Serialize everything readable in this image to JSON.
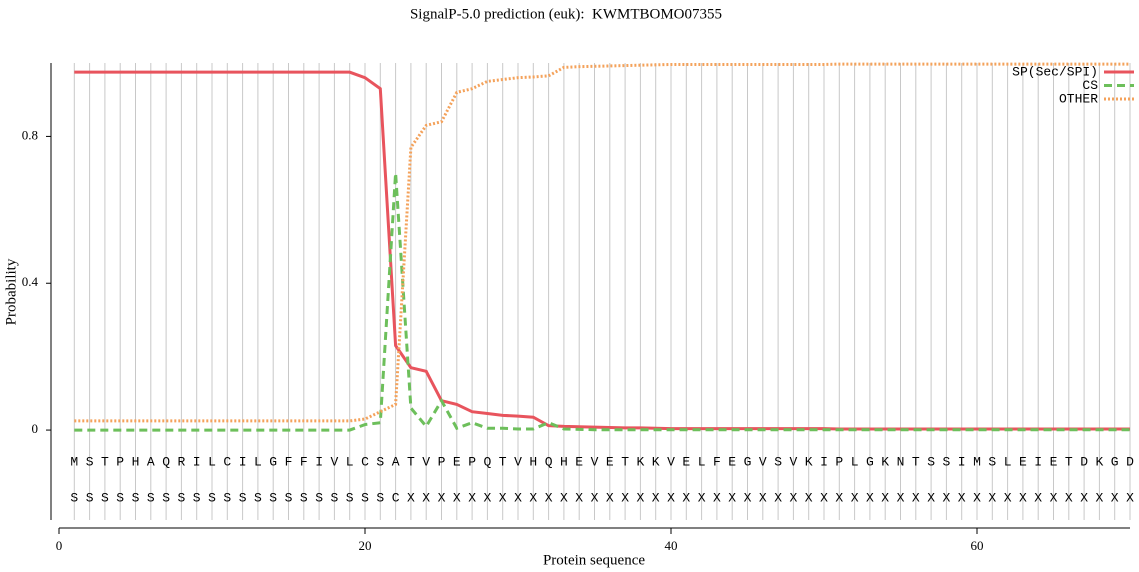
{
  "chart_data": {
    "type": "line",
    "title": "SignalP-5.0 prediction (euk):  KWMTBOMO07355",
    "x_label": "Protein sequence",
    "y_label": "Probability",
    "x": [
      1,
      2,
      3,
      4,
      5,
      6,
      7,
      8,
      9,
      10,
      11,
      12,
      13,
      14,
      15,
      16,
      17,
      18,
      19,
      20,
      21,
      22,
      23,
      24,
      25,
      26,
      27,
      28,
      29,
      30,
      31,
      32,
      33,
      34,
      35,
      36,
      37,
      38,
      39,
      40,
      41,
      42,
      43,
      44,
      45,
      46,
      47,
      48,
      49,
      50,
      51,
      52,
      53,
      54,
      55,
      56,
      57,
      58,
      59,
      60,
      61,
      62,
      63,
      64,
      65,
      66,
      67,
      68,
      69,
      70
    ],
    "residues": [
      "M",
      "S",
      "T",
      "P",
      "H",
      "A",
      "Q",
      "R",
      "I",
      "L",
      "C",
      "I",
      "L",
      "G",
      "F",
      "F",
      "I",
      "V",
      "L",
      "C",
      "S",
      "A",
      "T",
      "V",
      "P",
      "E",
      "P",
      "Q",
      "T",
      "V",
      "H",
      "Q",
      "H",
      "E",
      "V",
      "E",
      "T",
      "K",
      "K",
      "V",
      "E",
      "L",
      "F",
      "E",
      "G",
      "V",
      "S",
      "V",
      "K",
      "I",
      "P",
      "L",
      "G",
      "K",
      "N",
      "T",
      "S",
      "S",
      "I",
      "M",
      "S",
      "L",
      "E",
      "I",
      "E",
      "T",
      "D",
      "K",
      "G",
      "D"
    ],
    "predicted_labels": [
      "S",
      "S",
      "S",
      "S",
      "S",
      "S",
      "S",
      "S",
      "S",
      "S",
      "S",
      "S",
      "S",
      "S",
      "S",
      "S",
      "S",
      "S",
      "S",
      "S",
      "S",
      "C",
      "X",
      "X",
      "X",
      "X",
      "X",
      "X",
      "X",
      "X",
      "X",
      "X",
      "X",
      "X",
      "X",
      "X",
      "X",
      "X",
      "X",
      "X",
      "X",
      "X",
      "X",
      "X",
      "X",
      "X",
      "X",
      "X",
      "X",
      "X",
      "X",
      "X",
      "X",
      "X",
      "X",
      "X",
      "X",
      "X",
      "X",
      "X",
      "X",
      "X",
      "X",
      "X",
      "X",
      "X",
      "X",
      "X",
      "X",
      "X"
    ],
    "series": [
      {
        "name": "SP(Sec/SPI)",
        "color": "#e8545d",
        "dash": "solid",
        "values": [
          0.975,
          0.975,
          0.975,
          0.975,
          0.975,
          0.975,
          0.975,
          0.975,
          0.975,
          0.975,
          0.975,
          0.975,
          0.975,
          0.975,
          0.975,
          0.975,
          0.975,
          0.975,
          0.975,
          0.96,
          0.93,
          0.23,
          0.17,
          0.16,
          0.08,
          0.07,
          0.05,
          0.045,
          0.04,
          0.038,
          0.035,
          0.012,
          0.01,
          0.009,
          0.008,
          0.007,
          0.006,
          0.006,
          0.005,
          0.004,
          0.004,
          0.004,
          0.004,
          0.004,
          0.004,
          0.004,
          0.004,
          0.004,
          0.004,
          0.004,
          0.003,
          0.003,
          0.003,
          0.003,
          0.003,
          0.003,
          0.003,
          0.003,
          0.003,
          0.003,
          0.003,
          0.003,
          0.003,
          0.003,
          0.003,
          0.003,
          0.003,
          0.003,
          0.003,
          0.003
        ]
      },
      {
        "name": "CS",
        "color": "#6dbf5b",
        "dash": "dashed",
        "values": [
          0,
          0,
          0,
          0,
          0,
          0,
          0,
          0,
          0,
          0,
          0,
          0,
          0,
          0,
          0,
          0,
          0,
          0,
          0,
          0.015,
          0.02,
          0.7,
          0.06,
          0.01,
          0.08,
          0.005,
          0.02,
          0.005,
          0.005,
          0.003,
          0.003,
          0.02,
          0.003,
          0.002,
          0.001,
          0.001,
          0.001,
          0.001,
          0.001,
          0.001,
          0.001,
          0.001,
          0.001,
          0.001,
          0.001,
          0.001,
          0.001,
          0.001,
          0.001,
          0.001,
          0.001,
          0.001,
          0.001,
          0.001,
          0.001,
          0.001,
          0.001,
          0.001,
          0.001,
          0.001,
          0.001,
          0.001,
          0.001,
          0.001,
          0.001,
          0.001,
          0.001,
          0.001,
          0.001,
          0.001
        ]
      },
      {
        "name": "OTHER",
        "color": "#f4a25b",
        "dash": "dotted",
        "values": [
          0.025,
          0.025,
          0.025,
          0.025,
          0.025,
          0.025,
          0.025,
          0.025,
          0.025,
          0.025,
          0.025,
          0.025,
          0.025,
          0.025,
          0.025,
          0.025,
          0.025,
          0.025,
          0.025,
          0.03,
          0.05,
          0.07,
          0.77,
          0.83,
          0.84,
          0.92,
          0.93,
          0.95,
          0.955,
          0.96,
          0.962,
          0.965,
          0.988,
          0.99,
          0.991,
          0.992,
          0.993,
          0.994,
          0.995,
          0.996,
          0.996,
          0.996,
          0.996,
          0.996,
          0.996,
          0.996,
          0.996,
          0.996,
          0.996,
          0.996,
          0.997,
          0.997,
          0.997,
          0.997,
          0.997,
          0.997,
          0.997,
          0.997,
          0.997,
          0.997,
          0.997,
          0.997,
          0.997,
          0.997,
          0.997,
          0.997,
          0.997,
          0.997,
          0.997,
          0.997
        ]
      }
    ],
    "xlim": [
      0,
      70
    ],
    "xticks": [
      0,
      20,
      40,
      60
    ],
    "ylim": [
      -0.245,
      1
    ],
    "yticks": [
      0,
      0.4,
      0.8
    ],
    "grid": true,
    "legend": "top-right"
  }
}
